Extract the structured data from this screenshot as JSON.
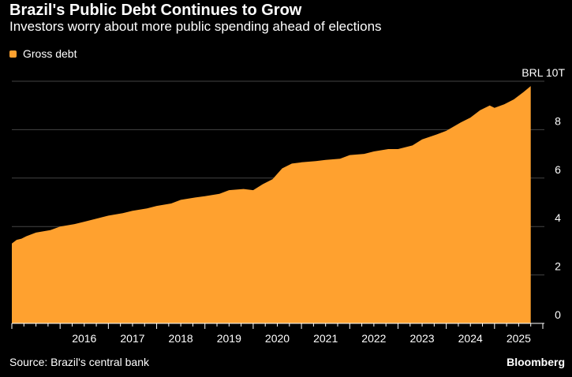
{
  "header": {
    "title": "Brazil's Public Debt Continues to Grow",
    "subtitle": "Investors worry about more public spending ahead of elections"
  },
  "legend": {
    "label": "Gross debt",
    "color": "#ffa12f"
  },
  "footer": {
    "source": "Source: Brazil's central bank",
    "brand": "Bloomberg"
  },
  "colors": {
    "background": "#000000",
    "area": "#ffa12f",
    "grid": "#444444",
    "text": "#ffffff"
  },
  "chart_data": {
    "type": "area",
    "title": "Brazil's Public Debt Continues to Grow",
    "subtitle": "Investors worry about more public spending ahead of elections",
    "xlabel": "",
    "ylabel": "BRL 10T",
    "unit_label": "BRL 10T",
    "ylim": [
      0,
      10
    ],
    "xlim": [
      2015.0,
      2026.0
    ],
    "yticks": [
      0,
      2,
      4,
      6,
      8
    ],
    "xticks": [
      2016,
      2017,
      2018,
      2019,
      2020,
      2021,
      2022,
      2023,
      2024,
      2025
    ],
    "series": [
      {
        "name": "Gross debt",
        "x": [
          2015.0,
          2015.1,
          2015.2,
          2015.3,
          2015.5,
          2015.8,
          2016.0,
          2016.3,
          2016.5,
          2016.8,
          2017.0,
          2017.3,
          2017.5,
          2017.8,
          2018.0,
          2018.3,
          2018.5,
          2018.8,
          2019.0,
          2019.3,
          2019.5,
          2019.8,
          2020.0,
          2020.2,
          2020.4,
          2020.6,
          2020.8,
          2021.0,
          2021.3,
          2021.5,
          2021.8,
          2022.0,
          2022.3,
          2022.5,
          2022.8,
          2023.0,
          2023.3,
          2023.5,
          2023.8,
          2024.0,
          2024.3,
          2024.5,
          2024.7,
          2024.9,
          2025.0,
          2025.2,
          2025.4,
          2025.6,
          2025.75
        ],
        "values": [
          3.3,
          3.45,
          3.5,
          3.6,
          3.75,
          3.85,
          4.0,
          4.1,
          4.2,
          4.35,
          4.45,
          4.55,
          4.65,
          4.75,
          4.85,
          4.95,
          5.1,
          5.2,
          5.25,
          5.35,
          5.5,
          5.55,
          5.5,
          5.75,
          5.95,
          6.4,
          6.6,
          6.65,
          6.7,
          6.75,
          6.8,
          6.95,
          7.0,
          7.1,
          7.2,
          7.2,
          7.35,
          7.6,
          7.8,
          7.95,
          8.3,
          8.5,
          8.8,
          9.0,
          8.9,
          9.05,
          9.25,
          9.55,
          9.8
        ]
      }
    ]
  }
}
